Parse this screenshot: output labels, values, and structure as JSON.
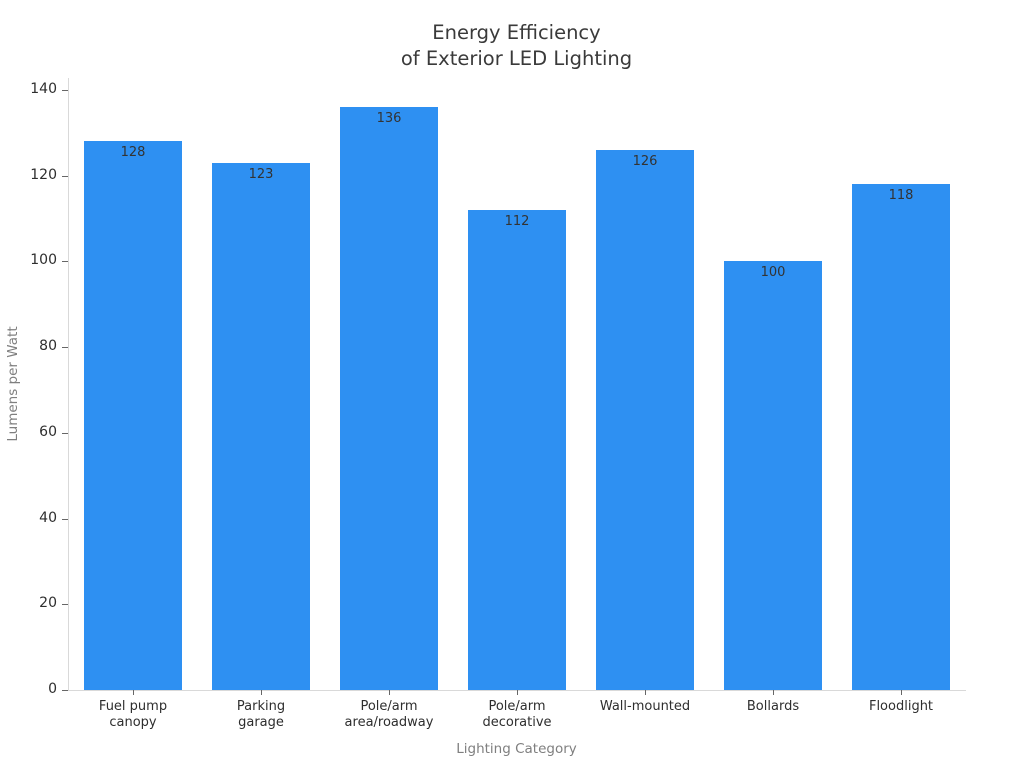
{
  "chart_data": {
    "type": "bar",
    "title": "Energy Efficiency\nof Exterior LED Lighting",
    "xlabel": "Lighting Category",
    "ylabel": "Lumens per Watt",
    "categories": [
      "Fuel pump\ncanopy",
      "Parking\ngarage",
      "Pole/arm\narea/roadway",
      "Pole/arm\ndecorative",
      "Wall-mounted",
      "Bollards",
      "Floodlight"
    ],
    "values": [
      128,
      123,
      136,
      112,
      126,
      100,
      118
    ],
    "value_labels": [
      "128",
      "123",
      "136",
      "112",
      "126",
      "100",
      "118"
    ],
    "yticks": [
      0,
      20,
      40,
      60,
      80,
      100,
      120,
      140
    ],
    "ylim": [
      0,
      142.8
    ],
    "grid": false,
    "legend": false,
    "bar_color": "#2e90f2",
    "value_label_color": "#333333",
    "tick_label_color": "#2e2e2e",
    "axis_label_color": "#7f7f7f",
    "title_color": "#3a3a3a",
    "spine_color": "#d9d9d9",
    "background_color": "#ffffff"
  }
}
